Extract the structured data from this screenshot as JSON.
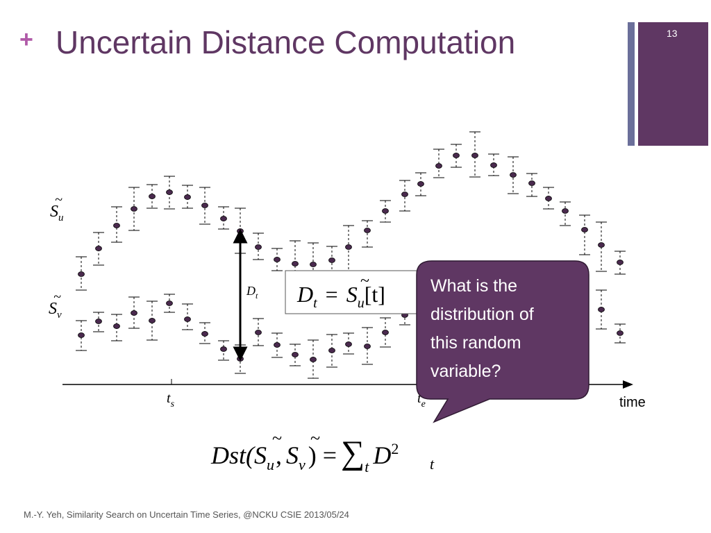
{
  "slide": {
    "title": "Uncertain Distance Computation",
    "number": "13",
    "footer": "M.-Y. Yeh, Similarity Search on Uncertain Time Series,  @NCKU CSIE 2013/05/24"
  },
  "diagram": {
    "series_u_label": {
      "base": "S",
      "accent": "~",
      "sub": "u"
    },
    "series_v_label": {
      "base": "S",
      "accent": "~",
      "sub": "v"
    },
    "distance_label": {
      "base": "D",
      "sub": "t"
    },
    "axis_label": "time",
    "tick_start": {
      "base": "t",
      "sub": "s"
    },
    "tick_end": {
      "base": "t",
      "sub": "e"
    },
    "equation_box": {
      "lhs": "D",
      "lhs_sub": "t",
      "eq": "=",
      "s": "S",
      "s_sub": "u",
      "rest": "[t]"
    },
    "callout_text": [
      "What is the",
      "distribution of",
      "this random",
      "variable?"
    ],
    "bottom_formula": {
      "prefix": "Dst(",
      "s1": "S",
      "s1_sub": "u",
      "comma": ",",
      "s2": "S",
      "s2_sub": "v",
      "suffix": ") =",
      "sum": "∑",
      "sum_sub": "t",
      "term": "D",
      "term_sub": "t",
      "term_sup": "2"
    }
  },
  "colors": {
    "accent": "#5f3763",
    "accent_secondary": "#6b6f9a",
    "plus_sign": "#b05aa8",
    "point": "#4a2a4e",
    "axis": "#000000",
    "callout_text": "#ffffff"
  },
  "icons": {
    "point_marker": "filled-ellipse",
    "error_bar": "dashed-whisker"
  }
}
